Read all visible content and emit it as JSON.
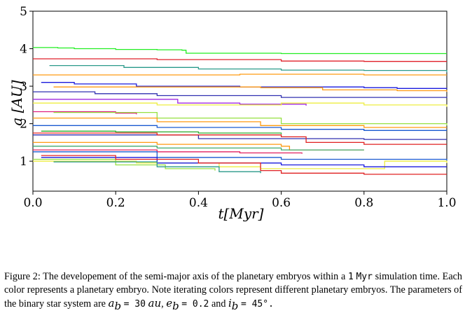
{
  "chart_data": {
    "type": "line",
    "xlabel": "t[Myr]",
    "ylabel": "a [AU]",
    "xlim": [
      0.0,
      1.0
    ],
    "ylim": [
      0.2,
      5.0
    ],
    "x_ticks": [
      "0.0",
      "0.2",
      "0.4",
      "0.6",
      "0.8",
      "1.0"
    ],
    "y_ticks": [
      "1",
      "2",
      "3",
      "4",
      "5"
    ],
    "grid": false,
    "series": [
      {
        "color": "#22ee22",
        "points": [
          [
            0,
            4.03
          ],
          [
            0.06,
            4.02
          ],
          [
            0.1,
            4.0
          ],
          [
            0.2,
            3.98
          ],
          [
            0.3,
            3.97
          ],
          [
            0.36,
            3.96
          ],
          [
            0.37,
            3.88
          ],
          [
            0.6,
            3.87
          ],
          [
            1.0,
            3.87
          ]
        ]
      },
      {
        "color": "#e0202a",
        "points": [
          [
            0,
            3.73
          ],
          [
            0.3,
            3.71
          ],
          [
            0.6,
            3.67
          ],
          [
            0.8,
            3.66
          ],
          [
            1.0,
            3.66
          ]
        ]
      },
      {
        "color": "#2a9a8a",
        "points": [
          [
            0.04,
            3.55
          ],
          [
            0.22,
            3.5
          ],
          [
            0.4,
            3.46
          ],
          [
            0.6,
            3.43
          ],
          [
            0.8,
            3.42
          ],
          [
            1.0,
            3.37
          ]
        ]
      },
      {
        "color": "#ff9a10",
        "points": [
          [
            0,
            3.3
          ],
          [
            0.5,
            3.32
          ],
          [
            0.8,
            3.3
          ],
          [
            0.98,
            3.3
          ],
          [
            1.0,
            3.3
          ]
        ]
      },
      {
        "color": "#1a1add",
        "points": [
          [
            0.02,
            3.1
          ],
          [
            0.1,
            3.06
          ],
          [
            0.25,
            3.0
          ],
          [
            0.5,
            2.98
          ],
          [
            0.8,
            2.96
          ],
          [
            0.88,
            2.94
          ],
          [
            1.0,
            2.93
          ]
        ]
      },
      {
        "color": "#ff9a10",
        "points": [
          [
            0.05,
            2.98
          ],
          [
            0.55,
            2.96
          ],
          [
            0.7,
            2.9
          ],
          [
            0.88,
            2.88
          ],
          [
            1.0,
            2.85
          ]
        ]
      },
      {
        "color": "#3030b0",
        "points": [
          [
            0,
            2.85
          ],
          [
            0.15,
            2.8
          ],
          [
            0.3,
            2.75
          ],
          [
            0.6,
            2.7
          ],
          [
            0.85,
            2.7
          ],
          [
            1.0,
            2.72
          ]
        ]
      },
      {
        "color": "#a02ae0",
        "points": [
          [
            0,
            2.65
          ],
          [
            0.35,
            2.55
          ],
          [
            0.5,
            2.52
          ],
          [
            0.66,
            2.48
          ]
        ]
      },
      {
        "color": "#eeee40",
        "points": [
          [
            0,
            2.55
          ],
          [
            0.3,
            2.5
          ],
          [
            0.6,
            2.55
          ],
          [
            0.8,
            2.5
          ],
          [
            1.0,
            2.45
          ]
        ]
      },
      {
        "color": "#e02080",
        "points": [
          [
            0,
            2.32
          ],
          [
            0.2,
            2.28
          ],
          [
            0.25,
            2.25
          ]
        ]
      },
      {
        "color": "#96e040",
        "points": [
          [
            0.05,
            2.3
          ],
          [
            0.3,
            2.15
          ],
          [
            0.6,
            2.0
          ],
          [
            1.0,
            1.95
          ]
        ]
      },
      {
        "color": "#ff9a10",
        "points": [
          [
            0,
            2.15
          ],
          [
            0.3,
            2.05
          ],
          [
            0.55,
            1.95
          ],
          [
            0.8,
            1.9
          ],
          [
            1.0,
            1.9
          ]
        ]
      },
      {
        "color": "#1a5ad0",
        "points": [
          [
            0,
            1.95
          ],
          [
            0.3,
            1.9
          ],
          [
            0.6,
            1.85
          ],
          [
            0.8,
            1.82
          ],
          [
            1.0,
            1.82
          ]
        ]
      },
      {
        "color": "#2aaa2a",
        "points": [
          [
            0.02,
            1.8
          ],
          [
            0.2,
            1.78
          ],
          [
            0.4,
            1.75
          ],
          [
            0.6,
            1.72
          ]
        ]
      },
      {
        "color": "#3030b0",
        "points": [
          [
            0,
            1.7
          ],
          [
            0.4,
            1.6
          ],
          [
            0.8,
            1.58
          ],
          [
            1.0,
            1.58
          ]
        ]
      },
      {
        "color": "#e02020",
        "points": [
          [
            0,
            1.75
          ],
          [
            0.3,
            1.7
          ],
          [
            0.6,
            1.65
          ],
          [
            0.66,
            1.5
          ],
          [
            0.8,
            1.45
          ],
          [
            1.0,
            1.45
          ]
        ]
      },
      {
        "color": "#ff9a10",
        "points": [
          [
            0,
            1.5
          ],
          [
            0.3,
            1.45
          ],
          [
            0.6,
            1.4
          ],
          [
            0.62,
            1.3
          ],
          [
            0.8,
            1.3
          ]
        ]
      },
      {
        "color": "#40aa70",
        "points": [
          [
            0,
            1.4
          ],
          [
            0.3,
            1.35
          ],
          [
            0.6,
            1.3
          ],
          [
            0.8,
            1.3
          ]
        ]
      },
      {
        "color": "#e02060",
        "points": [
          [
            0,
            1.3
          ],
          [
            0.3,
            1.25
          ],
          [
            0.5,
            1.22
          ],
          [
            0.65,
            1.2
          ]
        ]
      },
      {
        "color": "#1a5ad0",
        "points": [
          [
            0,
            1.25
          ],
          [
            0.3,
            1.1
          ],
          [
            0.6,
            1.05
          ],
          [
            0.8,
            1.05
          ],
          [
            1.0,
            1.02
          ]
        ]
      },
      {
        "color": "#eeee40",
        "points": [
          [
            0,
            1.0
          ],
          [
            0.25,
            0.95
          ],
          [
            0.45,
            0.85
          ],
          [
            0.55,
            0.8
          ],
          [
            0.8,
            0.8
          ],
          [
            0.85,
            1.0
          ],
          [
            1.0,
            0.95
          ]
        ]
      },
      {
        "color": "#96e040",
        "points": [
          [
            0,
            1.05
          ],
          [
            0.2,
            0.9
          ],
          [
            0.32,
            0.8
          ],
          [
            0.44,
            0.75
          ]
        ]
      },
      {
        "color": "#1a1add",
        "points": [
          [
            0.02,
            1.1
          ],
          [
            0.3,
            0.95
          ],
          [
            0.6,
            0.9
          ],
          [
            0.8,
            0.85
          ],
          [
            1.0,
            0.85
          ]
        ]
      },
      {
        "color": "#e02020",
        "points": [
          [
            0.02,
            1.15
          ],
          [
            0.2,
            1.05
          ],
          [
            0.4,
            0.95
          ],
          [
            0.55,
            0.75
          ],
          [
            0.6,
            0.68
          ],
          [
            0.8,
            0.65
          ],
          [
            1.0,
            0.65
          ]
        ]
      },
      {
        "color": "#2a9a8a",
        "points": [
          [
            0.05,
            0.98
          ],
          [
            0.3,
            0.85
          ],
          [
            0.45,
            0.72
          ],
          [
            0.55,
            0.68
          ]
        ]
      }
    ]
  },
  "caption": {
    "prefix": "Figure 2:  The developement of the semi-major axis of the planetary embryos within a",
    "one": "1",
    "myr": "Myr",
    "rest1": "simulation time. Each color represents a planetary embryo. Note iterating colors represent different planetary embryos. The parameters of the binary star system are",
    "ab": "a",
    "ab_sub": "b",
    "ab_val": "= 30",
    "au": "au",
    "eb": "e",
    "eb_sub": "b",
    "eb_val": "= 0.2",
    "and": "and",
    "ib": "i",
    "ib_sub": "b",
    "ib_val": "= 45°."
  }
}
